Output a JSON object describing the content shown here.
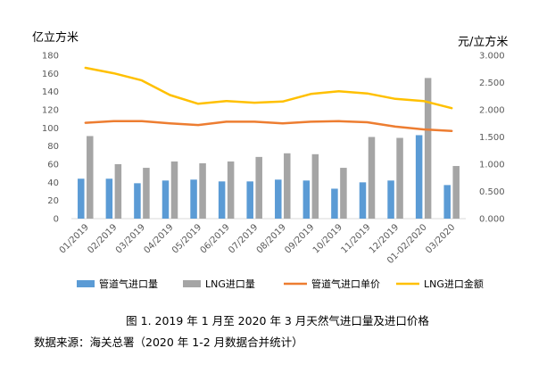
{
  "chart_data": {
    "type": "bar",
    "title": "",
    "left_axis_unit": "亿立方米",
    "right_axis_unit": "元/立方米",
    "categories": [
      "01/2019",
      "02/2019",
      "03/2019",
      "04/2019",
      "05/2019",
      "06/2019",
      "07/2019",
      "08/2019",
      "09/2019",
      "10/2019",
      "11/2019",
      "12/2019",
      "01-02/2020",
      "03/2020"
    ],
    "left_ylim": [
      0,
      180
    ],
    "left_ticks": [
      "0",
      "20",
      "40",
      "60",
      "80",
      "100",
      "120",
      "140",
      "160",
      "180"
    ],
    "right_ylim": [
      0,
      3.0
    ],
    "right_ticks": [
      "0.000",
      "0.500",
      "1.000",
      "1.500",
      "2.000",
      "2.500",
      "3.000"
    ],
    "grid": false,
    "legend_position": "bottom",
    "series": [
      {
        "name": "管道气进口量",
        "type": "bar",
        "axis": "left",
        "color": "#5B9BD5",
        "values": [
          44,
          44,
          39,
          42,
          43,
          41,
          41,
          43,
          42,
          33,
          40,
          42,
          92,
          37
        ]
      },
      {
        "name": "LNG进口量",
        "type": "bar",
        "axis": "left",
        "color": "#A5A5A5",
        "values": [
          91,
          60,
          56,
          63,
          61,
          63,
          68,
          72,
          71,
          56,
          90,
          89,
          155,
          58
        ]
      },
      {
        "name": "管道气进口单价",
        "type": "line",
        "axis": "right",
        "color": "#ED7D31",
        "values": [
          1.76,
          1.79,
          1.79,
          1.75,
          1.72,
          1.78,
          1.78,
          1.75,
          1.78,
          1.79,
          1.77,
          1.69,
          1.64,
          1.61
        ]
      },
      {
        "name": "LNG进口金额",
        "type": "line",
        "axis": "right",
        "color": "#FFC000",
        "values": [
          2.77,
          2.67,
          2.54,
          2.27,
          2.11,
          2.16,
          2.13,
          2.15,
          2.29,
          2.34,
          2.3,
          2.2,
          2.16,
          2.03
        ]
      }
    ]
  },
  "caption": "图 1. 2019 年 1 月至 2020 年 3 月天然气进口量及进口价格",
  "source": "数据来源：海关总署（2020 年 1-2 月数据合并统计）"
}
